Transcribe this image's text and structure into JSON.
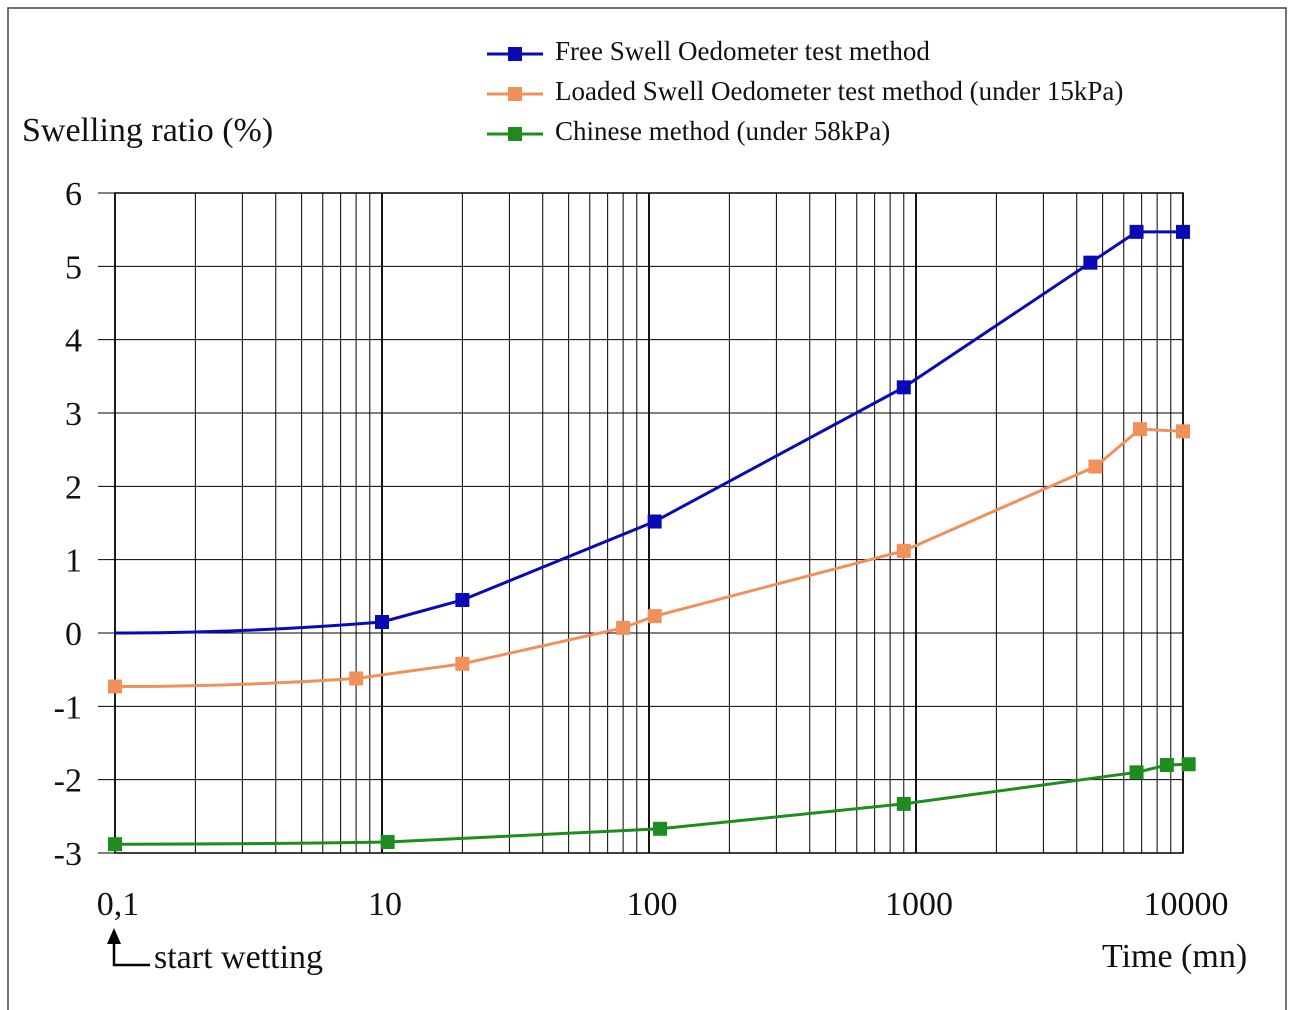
{
  "chart_data": {
    "type": "line",
    "title": "",
    "ylabel": "Swelling ratio (%)",
    "xlabel": "Time (mn)",
    "x_scale": "log",
    "xlim": [
      1,
      10000
    ],
    "ylim": [
      -3,
      6
    ],
    "grid": true,
    "legend_position": "top",
    "x_tick_labels": [
      "0,1",
      "10",
      "100",
      "1000",
      "10000"
    ],
    "y_ticks": [
      6,
      5,
      4,
      3,
      2,
      1,
      0,
      -1,
      -2,
      -3
    ],
    "y_tick_labels": [
      "6",
      "5",
      "4",
      "3",
      "2",
      "1",
      "0",
      "-1",
      "-2",
      "-3"
    ],
    "annotation": "start wetting",
    "series": [
      {
        "name": "Free Swell Oedometer test method",
        "color": "#0a0ab4",
        "points": [
          [
            1,
            0
          ],
          [
            10,
            0.15
          ],
          [
            20,
            0.45
          ],
          [
            105,
            1.52
          ],
          [
            900,
            3.35
          ],
          [
            4500,
            5.05
          ],
          [
            6700,
            5.47
          ],
          [
            10000,
            5.47
          ]
        ],
        "marker_from": 1
      },
      {
        "name": "Loaded Swell Oedometer test method (under 15kPa)",
        "color": "#f0905a",
        "points": [
          [
            1,
            -0.73
          ],
          [
            8,
            -0.62
          ],
          [
            20,
            -0.42
          ],
          [
            80,
            0.07
          ],
          [
            105,
            0.23
          ],
          [
            900,
            1.12
          ],
          [
            4700,
            2.27
          ],
          [
            6900,
            2.78
          ],
          [
            10000,
            2.75
          ]
        ],
        "marker_from": 0
      },
      {
        "name": "Chinese method (under 58kPa)",
        "color": "#1f8c1f",
        "points": [
          [
            1,
            -2.88
          ],
          [
            10.5,
            -2.85
          ],
          [
            110,
            -2.67
          ],
          [
            900,
            -2.33
          ],
          [
            6700,
            -1.9
          ],
          [
            8700,
            -1.8
          ],
          [
            10500,
            -1.79
          ]
        ],
        "marker_from": 0
      }
    ]
  }
}
